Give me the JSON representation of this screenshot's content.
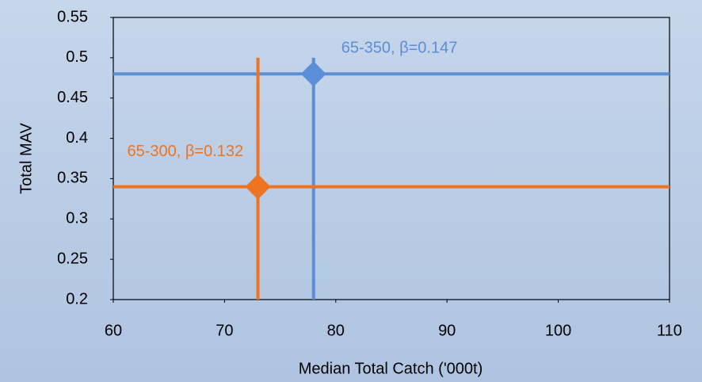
{
  "chart_data": {
    "type": "scatter",
    "x_label": "Median Total Catch ('000t)",
    "y_label": "Total MAV",
    "xlim": [
      60,
      110
    ],
    "xticks": [
      60,
      70,
      80,
      90,
      100,
      110
    ],
    "ylim": [
      0.2,
      0.55
    ],
    "yticks": [
      0.2,
      0.25,
      0.3,
      0.35,
      0.4,
      0.45,
      0.5,
      0.55
    ],
    "series": [
      {
        "name": "65-350, β=0.147",
        "color": "#5b8ed7",
        "x": 78,
        "y": 0.48,
        "x_span": [
          60,
          110
        ],
        "y_span": [
          0.2,
          0.5
        ]
      },
      {
        "name": "65-300, β=0.132",
        "color": "#ed7422",
        "x": 73,
        "y": 0.34,
        "x_span": [
          60,
          110
        ],
        "y_span": [
          0.2,
          0.5
        ]
      }
    ]
  }
}
